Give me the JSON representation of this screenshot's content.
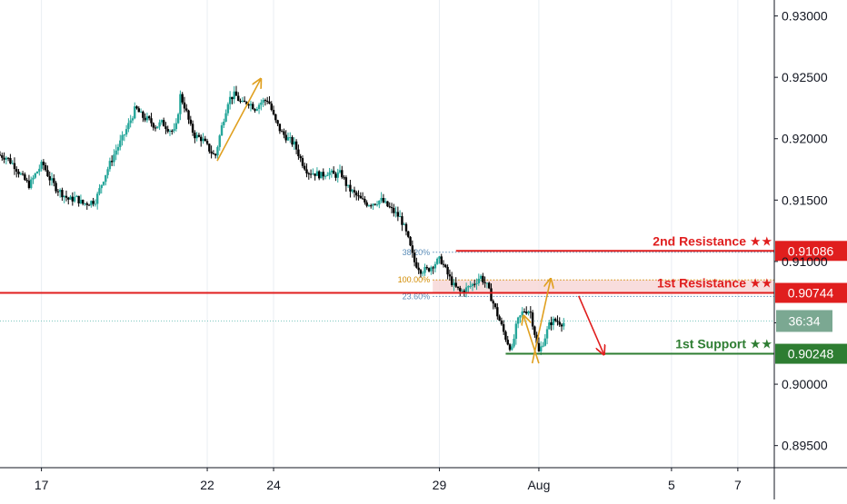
{
  "chart_data": {
    "type": "candlestick",
    "colors": {
      "up": "#26a69a",
      "down": "#000000",
      "resistance": "#e01e1e",
      "support": "#2e7d32",
      "fib_100": "#d18b00",
      "fib_other": "#5b8db8",
      "arrow_orange": "#e0a020",
      "arrow_red": "#e01e1e",
      "countdown_bg": "#7ba892",
      "grid": "#e9eef3"
    },
    "x_axis": {
      "labels": [
        {
          "text": "17",
          "day": 0
        },
        {
          "text": "22",
          "day": 5
        },
        {
          "text": "24",
          "day": 7
        },
        {
          "text": "29",
          "day": 12
        },
        {
          "text": "Aug",
          "day": 15
        },
        {
          "text": "5",
          "day": 19
        },
        {
          "text": "7",
          "day": 21
        }
      ],
      "min": -1.25,
      "max": 22.1
    },
    "y_axis": {
      "labels": [
        "0.93000",
        "0.92500",
        "0.92000",
        "0.91500",
        "0.91000",
        "0.90500",
        "0.90000",
        "0.89500"
      ],
      "values": [
        0.93,
        0.925,
        0.92,
        0.915,
        0.91,
        0.905,
        0.9,
        0.895
      ],
      "min": 0.8932,
      "max": 0.9313
    },
    "levels": [
      {
        "name": "2nd Resistance ★★",
        "value": "0.91086",
        "y": 0.91086,
        "kind": "resistance",
        "x_start": 12.5
      },
      {
        "name": "1st Resistance ★★",
        "value": "0.90744",
        "y": 0.90744,
        "kind": "resistance",
        "x_start": -1.25
      },
      {
        "name": "1st Support ★★",
        "value": "0.90248",
        "y": 0.90248,
        "kind": "support",
        "x_start": 14.0
      }
    ],
    "fib_levels": [
      {
        "label": "38.20%",
        "y": 0.91075,
        "x_start": 11.8
      },
      {
        "label": "100.00%",
        "y": 0.9085,
        "x_start": 11.8
      },
      {
        "label": "23.60%",
        "y": 0.90715,
        "x_start": 11.8
      }
    ],
    "current_price": 0.90515,
    "countdown": "36:34",
    "arrows": [
      {
        "color": "orange",
        "from": [
          5.3,
          0.9182
        ],
        "to": [
          6.6,
          0.9248
        ]
      },
      {
        "color": "orange",
        "from": [
          14.8,
          0.9017
        ],
        "to": [
          15.35,
          0.9085
        ]
      },
      {
        "color": "orange",
        "from": [
          15.0,
          0.9017
        ],
        "to": [
          14.55,
          0.9055
        ]
      },
      {
        "color": "red",
        "from": [
          16.2,
          0.9072
        ],
        "to": [
          16.95,
          0.9025
        ]
      }
    ],
    "price_path": [
      [
        -1.25,
        0.9187
      ],
      [
        -1.0,
        0.9185
      ],
      [
        -0.75,
        0.9178
      ],
      [
        -0.5,
        0.9168
      ],
      [
        -0.3,
        0.9162
      ],
      [
        -0.1,
        0.9172
      ],
      [
        0.1,
        0.918
      ],
      [
        0.3,
        0.9168
      ],
      [
        0.5,
        0.916
      ],
      [
        0.7,
        0.9155
      ],
      [
        0.9,
        0.915
      ],
      [
        1.1,
        0.9152
      ],
      [
        1.3,
        0.9147
      ],
      [
        1.5,
        0.9148
      ],
      [
        1.7,
        0.915
      ],
      [
        1.9,
        0.9165
      ],
      [
        2.1,
        0.9178
      ],
      [
        2.3,
        0.919
      ],
      [
        2.5,
        0.92
      ],
      [
        2.7,
        0.9212
      ],
      [
        2.9,
        0.9225
      ],
      [
        3.1,
        0.9218
      ],
      [
        3.3,
        0.9215
      ],
      [
        3.5,
        0.921
      ],
      [
        3.7,
        0.9213
      ],
      [
        3.9,
        0.9208
      ],
      [
        4.1,
        0.9205
      ],
      [
        4.25,
        0.9235
      ],
      [
        4.4,
        0.9225
      ],
      [
        4.55,
        0.921
      ],
      [
        4.7,
        0.9202
      ],
      [
        4.9,
        0.92
      ],
      [
        5.1,
        0.9192
      ],
      [
        5.3,
        0.9185
      ],
      [
        5.5,
        0.921
      ],
      [
        5.7,
        0.9232
      ],
      [
        5.9,
        0.9236
      ],
      [
        6.1,
        0.9228
      ],
      [
        6.3,
        0.923
      ],
      [
        6.5,
        0.9225
      ],
      [
        6.7,
        0.923
      ],
      [
        6.9,
        0.9232
      ],
      [
        7.1,
        0.9215
      ],
      [
        7.3,
        0.9205
      ],
      [
        7.5,
        0.92
      ],
      [
        7.7,
        0.9195
      ],
      [
        7.9,
        0.9182
      ],
      [
        8.1,
        0.9173
      ],
      [
        8.3,
        0.9172
      ],
      [
        8.5,
        0.917
      ],
      [
        8.7,
        0.9173
      ],
      [
        8.9,
        0.917
      ],
      [
        9.1,
        0.9172
      ],
      [
        9.3,
        0.916
      ],
      [
        9.5,
        0.9155
      ],
      [
        9.7,
        0.915
      ],
      [
        9.9,
        0.9147
      ],
      [
        10.1,
        0.9148
      ],
      [
        10.3,
        0.915
      ],
      [
        10.5,
        0.9145
      ],
      [
        10.7,
        0.914
      ],
      [
        10.9,
        0.9135
      ],
      [
        11.1,
        0.912
      ],
      [
        11.3,
        0.91
      ],
      [
        11.5,
        0.9093
      ],
      [
        11.7,
        0.9093
      ],
      [
        11.9,
        0.9098
      ],
      [
        12.1,
        0.9102
      ],
      [
        12.3,
        0.909
      ],
      [
        12.5,
        0.908
      ],
      [
        12.7,
        0.9075
      ],
      [
        12.9,
        0.9078
      ],
      [
        13.1,
        0.9082
      ],
      [
        13.3,
        0.9088
      ],
      [
        13.5,
        0.908
      ],
      [
        13.7,
        0.9065
      ],
      [
        13.9,
        0.905
      ],
      [
        14.1,
        0.9035
      ],
      [
        14.25,
        0.9028
      ],
      [
        14.4,
        0.905
      ],
      [
        14.6,
        0.906
      ],
      [
        14.8,
        0.906
      ],
      [
        14.95,
        0.904
      ],
      [
        15.05,
        0.9025
      ],
      [
        15.2,
        0.9035
      ],
      [
        15.4,
        0.905
      ],
      [
        15.55,
        0.9052
      ],
      [
        15.75,
        0.905
      ]
    ]
  }
}
